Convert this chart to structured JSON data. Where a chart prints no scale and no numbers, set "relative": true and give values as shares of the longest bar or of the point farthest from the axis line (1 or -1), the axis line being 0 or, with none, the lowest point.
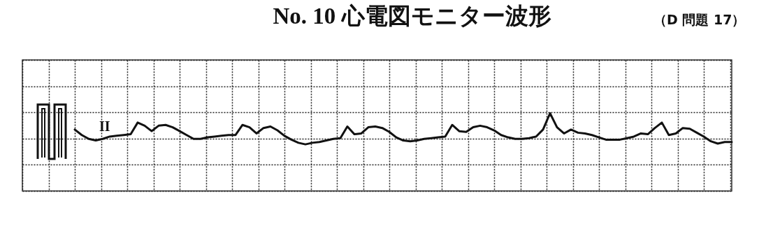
{
  "chart_data": {
    "type": "line",
    "title": "No.  10  心電図モニター波形",
    "annotations": [
      "（D  問題 17）",
      "II"
    ],
    "relative": true,
    "grid": true,
    "categories": [
      null,
      null,
      null,
      null,
      null,
      null,
      null,
      null,
      null,
      null,
      null,
      null,
      null,
      null,
      null,
      null,
      null,
      null,
      null,
      null,
      null,
      null,
      null,
      null,
      null,
      null,
      null,
      null,
      null,
      null,
      null,
      null,
      null,
      null,
      null,
      null,
      null,
      null,
      null,
      null,
      null,
      null,
      null,
      null,
      null,
      null,
      null,
      null,
      null,
      null,
      null,
      null,
      null,
      null,
      null,
      null,
      null,
      null,
      null,
      null,
      null,
      null,
      null,
      null,
      null,
      null,
      null,
      null,
      null,
      null,
      null,
      null,
      null,
      null,
      null,
      null,
      null,
      null,
      null,
      null,
      null,
      null,
      null,
      null,
      null,
      null,
      null,
      null,
      null,
      null,
      null,
      null,
      null,
      null,
      null
    ],
    "series": [
      {
        "color": "#111111",
        "values": [
          0.79,
          0.72,
          0.67,
          0.65,
          0.67,
          0.7,
          0.71,
          0.72,
          0.73,
          0.88,
          0.84,
          0.77,
          0.84,
          0.85,
          0.82,
          0.77,
          0.72,
          0.67,
          0.67,
          0.69,
          0.7,
          0.71,
          0.72,
          0.72,
          0.85,
          0.82,
          0.74,
          0.81,
          0.83,
          0.78,
          0.71,
          0.66,
          0.62,
          0.6,
          0.62,
          0.63,
          0.65,
          0.67,
          0.68,
          0.83,
          0.73,
          0.74,
          0.82,
          0.83,
          0.81,
          0.76,
          0.69,
          0.65,
          0.64,
          0.65,
          0.67,
          0.68,
          0.69,
          0.7,
          0.85,
          0.77,
          0.76,
          0.82,
          0.84,
          0.82,
          0.78,
          0.72,
          0.69,
          0.67,
          0.67,
          0.68,
          0.7,
          0.79,
          1,
          0.82,
          0.74,
          0.79,
          0.75,
          0.74,
          0.72,
          0.69,
          0.66,
          0.66,
          0.66,
          0.68,
          0.7,
          0.74,
          0.73,
          0.81,
          0.88,
          0.72,
          0.74,
          0.81,
          0.8,
          0.75,
          0.7,
          0.64,
          0.61,
          0.63,
          0.63
        ]
      }
    ]
  }
}
